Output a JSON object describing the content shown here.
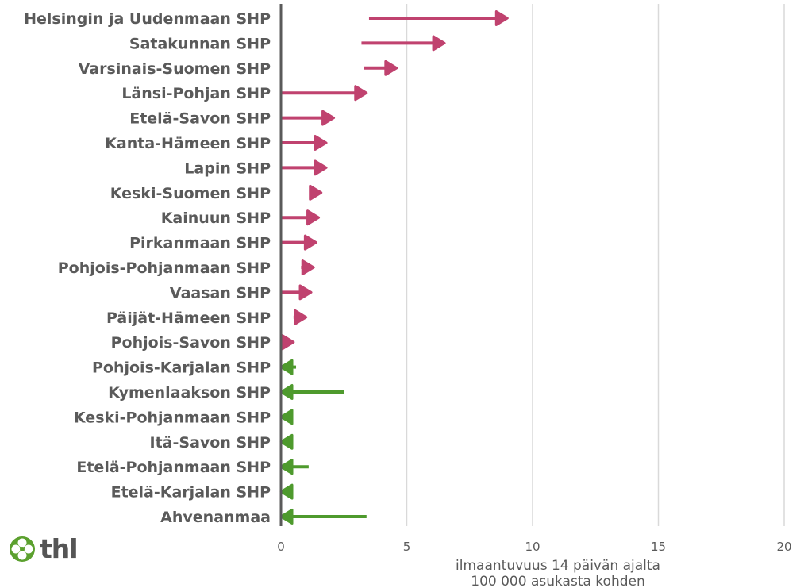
{
  "chart_data": {
    "type": "arrow",
    "categories": [
      "Helsingin ja Uudenmaan SHP",
      "Satakunnan SHP",
      "Varsinais-Suomen SHP",
      "Länsi-Pohjan SHP",
      "Etelä-Savon SHP",
      "Kanta-Hämeen SHP",
      "Lapin SHP",
      "Keski-Suomen SHP",
      "Kainuun SHP",
      "Pirkanmaan SHP",
      "Pohjois-Pohjanmaan SHP",
      "Vaasan SHP",
      "Päijät-Hämeen SHP",
      "Pohjois-Savon SHP",
      "Pohjois-Karjalan SHP",
      "Kymenlaakson SHP",
      "Keski-Pohjanmaan SHP",
      "Itä-Savon SHP",
      "Etelä-Pohjanmaan SHP",
      "Etelä-Karjalan SHP",
      "Ahvenanmaa"
    ],
    "series": [
      {
        "values_from": [
          3.5,
          3.2,
          3.3,
          0.0,
          0.0,
          0.0,
          0.0,
          1.2,
          0.0,
          0.0,
          0.8,
          0.0,
          0.5,
          0.0,
          0.6,
          2.5,
          0.4,
          0.4,
          1.1,
          0.4,
          3.4
        ]
      },
      {
        "values_to": [
          9.0,
          6.5,
          4.6,
          3.4,
          2.1,
          1.8,
          1.8,
          1.6,
          1.5,
          1.4,
          1.3,
          1.2,
          1.0,
          0.5,
          0.0,
          0.0,
          0.0,
          0.0,
          0.0,
          0.0,
          0.0
        ]
      }
    ],
    "xlim": [
      0,
      20
    ],
    "xticks": [
      "0",
      "5",
      "10",
      "15",
      "20"
    ],
    "xtick_values": [
      0,
      5,
      10,
      15,
      20
    ],
    "xlabel_line1": "ilmaantuvuus 14 päivän ajalta",
    "xlabel_line2": "100 000 asukasta kohden",
    "colors": {
      "increase": "#c0426f",
      "decrease": "#4e9a2d",
      "axis": "#5a5a5a",
      "grid": "#d9d9d9"
    },
    "grid": true
  },
  "logo": {
    "text": "thl",
    "icon": "flower-icon",
    "color": "#5ba02e"
  }
}
